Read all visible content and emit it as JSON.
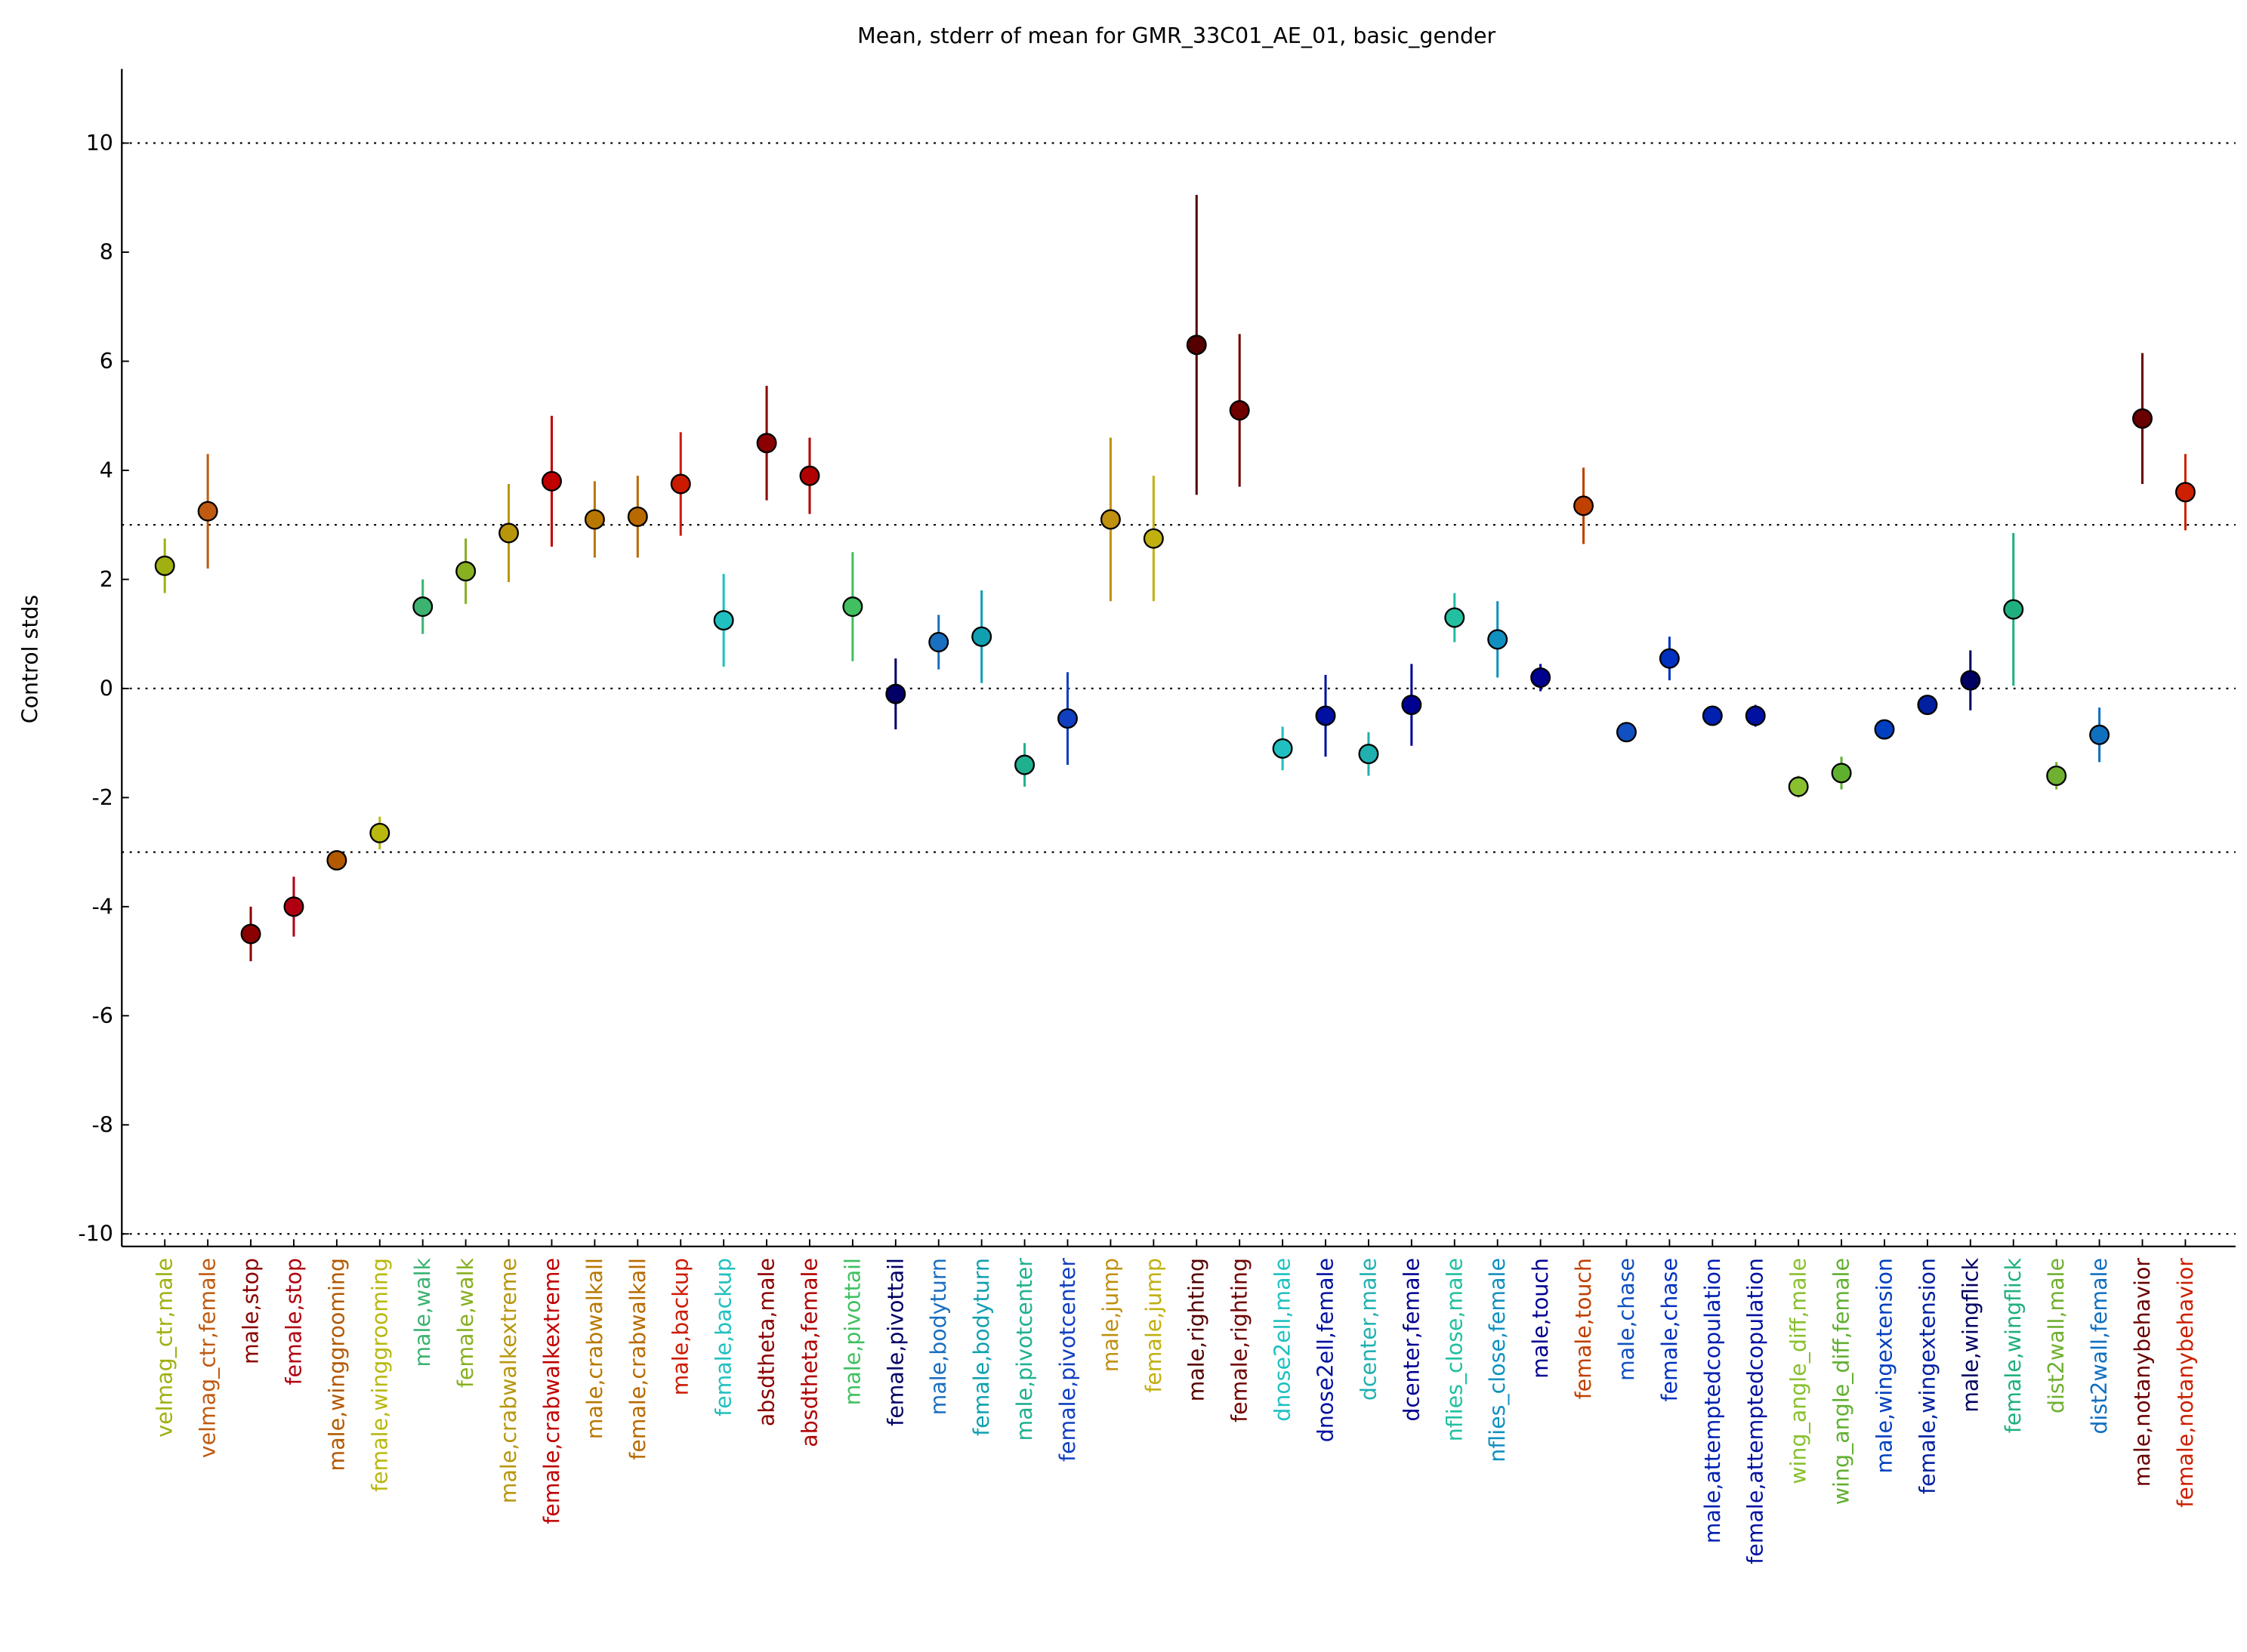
{
  "chart_data": {
    "type": "errorbar",
    "title": "Mean, stderr of mean for GMR_33C01_AE_01, basic_gender",
    "ylabel": "Control stds",
    "categories": [
      "velmag_ctr,male",
      "velmag_ctr,female",
      "male,stop",
      "female,stop",
      "male,winggrooming",
      "female,winggrooming",
      "male,walk",
      "female,walk",
      "male,crabwalkextreme",
      "female,crabwalkextreme",
      "male,crabwalkall",
      "female,crabwalkall",
      "male,backup",
      "female,backup",
      "absdtheta,male",
      "absdtheta,female",
      "male,pivottail",
      "female,pivottail",
      "male,bodyturn",
      "female,bodyturn",
      "male,pivotcenter",
      "female,pivotcenter",
      "male,jump",
      "female,jump",
      "male,righting",
      "female,righting",
      "dnose2ell,male",
      "dnose2ell,female",
      "dcenter,male",
      "dcenter,female",
      "nflies_close,male",
      "nflies_close,female",
      "male,touch",
      "female,touch",
      "male,chase",
      "female,chase",
      "male,attemptedcopulation",
      "female,attemptedcopulation",
      "wing_angle_diff,male",
      "wing_angle_diff,female",
      "male,wingextension",
      "female,wingextension",
      "male,wingflick",
      "female,wingflick",
      "dist2wall,male",
      "dist2wall,female",
      "male,notanybehavior",
      "female,notanybehavior"
    ],
    "values": [
      2.25,
      3.25,
      -4.5,
      -4.0,
      -3.15,
      -2.65,
      1.5,
      2.15,
      2.85,
      3.8,
      3.1,
      3.15,
      3.75,
      1.25,
      4.5,
      3.9,
      1.5,
      -0.1,
      0.85,
      0.95,
      -1.4,
      -0.55,
      3.1,
      2.75,
      6.3,
      5.1,
      -1.1,
      -0.5,
      -1.2,
      -0.3,
      1.3,
      0.9,
      0.2,
      3.35,
      -0.8,
      0.55,
      -0.5,
      -0.5,
      -1.8,
      -1.55,
      -0.75,
      -0.3,
      0.15,
      1.45,
      -1.6,
      -0.85,
      4.95,
      3.6
    ],
    "errors": [
      0.5,
      1.05,
      0.5,
      0.55,
      0.15,
      0.3,
      0.5,
      0.6,
      0.9,
      1.2,
      0.7,
      0.75,
      0.95,
      0.85,
      1.05,
      0.7,
      1.0,
      0.65,
      0.5,
      0.85,
      0.4,
      0.85,
      1.5,
      1.15,
      2.75,
      1.4,
      0.4,
      0.75,
      0.4,
      0.75,
      0.45,
      0.7,
      0.25,
      0.7,
      0.1,
      0.4,
      0.1,
      0.2,
      0.2,
      0.3,
      0.1,
      0.1,
      0.55,
      1.4,
      0.25,
      0.5,
      1.2,
      0.7
    ],
    "colors": [
      "#a0b010",
      "#c05a10",
      "#8b0000",
      "#b00010",
      "#b35900",
      "#b8b810",
      "#3cb371",
      "#88b020",
      "#b8960c",
      "#c00000",
      "#b87800",
      "#b86a00",
      "#cc1a00",
      "#20c0c0",
      "#8b0000",
      "#b00000",
      "#40c060",
      "#000066",
      "#1a6fc0",
      "#10a0b0",
      "#20b090",
      "#1040c0",
      "#c09010",
      "#c0b010",
      "#550000",
      "#700000",
      "#20c0c0",
      "#0010a0",
      "#20b0b0",
      "#000090",
      "#20c0a0",
      "#1090c0",
      "#000090",
      "#c04000",
      "#1050c0",
      "#0030c0",
      "#0020b0",
      "#0010a0",
      "#88c030",
      "#60b030",
      "#0040c0",
      "#0020a0",
      "#000060",
      "#20b080",
      "#70b030",
      "#1070c0",
      "#6a0000",
      "#cc2000"
    ],
    "ylim": [
      -10.23,
      11.36
    ],
    "yticks": [
      -10,
      -8,
      -6,
      -4,
      -2,
      0,
      2,
      4,
      6,
      8,
      10
    ],
    "reference_lines": [
      -10,
      -3,
      0,
      3,
      10
    ]
  }
}
